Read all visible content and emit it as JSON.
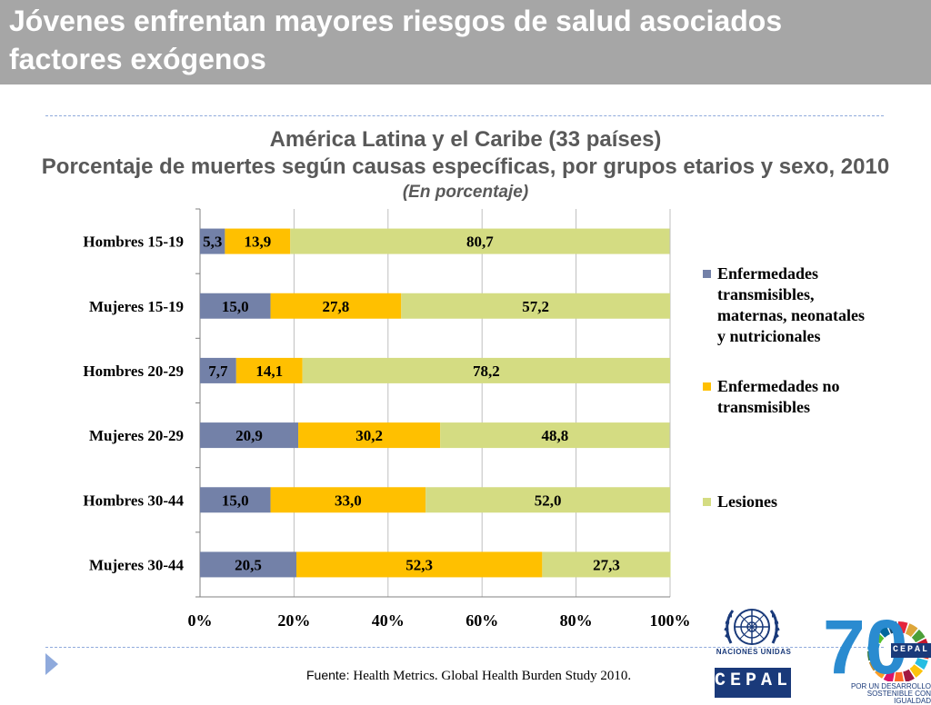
{
  "slide": {
    "title_line1": "Jóvenes enfrentan mayores riesgos de salud asociados",
    "title_line2": "factores exógenos"
  },
  "chart_data": {
    "type": "bar",
    "orientation": "horizontal",
    "stacked": "percent",
    "title": "América Latina y el Caribe (33 países)",
    "subtitle": "Porcentaje de muertes según causas específicas, por grupos etarios y sexo, 2010",
    "unit_note": "(En porcentaje)",
    "categories": [
      "Hombres 15-19",
      "Mujeres 15-19",
      "Hombres 20-29",
      "Mujeres 20-29",
      "Hombres 30-44",
      "Mujeres 30-44"
    ],
    "x_ticks": [
      "0%",
      "20%",
      "40%",
      "60%",
      "80%",
      "100%"
    ],
    "xlim": [
      0,
      100
    ],
    "grid": "vertical",
    "legend_position": "right",
    "series": [
      {
        "name": "Enfermedades transmisibles, maternas, neonatales y nutricionales",
        "color": "#7381a8",
        "values": [
          5.3,
          15.0,
          7.7,
          20.9,
          15.0,
          20.5
        ],
        "labels": [
          "5,3",
          "15,0",
          "7,7",
          "20,9",
          "15,0",
          "20,5"
        ]
      },
      {
        "name": "Enfermedades no transmisibles",
        "color": "#ffc000",
        "values": [
          13.9,
          27.8,
          14.1,
          30.2,
          33.0,
          52.3
        ],
        "labels": [
          "13,9",
          "27,8",
          "14,1",
          "30,2",
          "33,0",
          "52,3"
        ]
      },
      {
        "name": "Lesiones",
        "color": "#d4dc82",
        "values": [
          80.7,
          57.2,
          78.2,
          48.8,
          52.0,
          27.3
        ],
        "labels": [
          "80,7",
          "57,2",
          "78,2",
          "48,8",
          "52,0",
          "27,3"
        ]
      }
    ]
  },
  "legend": {
    "items": [
      {
        "lines": [
          "Enfermedades",
          "transmisibles,",
          "maternas, neonatales",
          "y nutricionales"
        ],
        "color": "#7381a8"
      },
      {
        "lines": [
          "Enfermedades no",
          "transmisibles"
        ],
        "color": "#ffc000"
      },
      {
        "lines": [
          "Lesiones"
        ],
        "color": "#d4dc82"
      }
    ]
  },
  "source": {
    "label": "Fuente:",
    "text": "Health Metrics. Global Health Burden Study 2010."
  },
  "logos": {
    "un_text": "NACIONES UNIDAS",
    "cepal_text": "CEPAL",
    "anniv_number": "70",
    "anniv_badge": "CEPAL",
    "slogan_line1": "POR UN DESARROLLO",
    "slogan_line2": "SOSTENIBLE CON IGUALDAD",
    "sdg_colors": [
      "#e5243b",
      "#dda63a",
      "#4c9f38",
      "#c5192d",
      "#ff3a21",
      "#26bde2",
      "#fcc30b",
      "#a21942",
      "#fd6925",
      "#dd1367",
      "#fd9d24",
      "#bf8b2e",
      "#3f7e44",
      "#0a97d9",
      "#56c02b",
      "#00689d",
      "#19486a"
    ]
  }
}
